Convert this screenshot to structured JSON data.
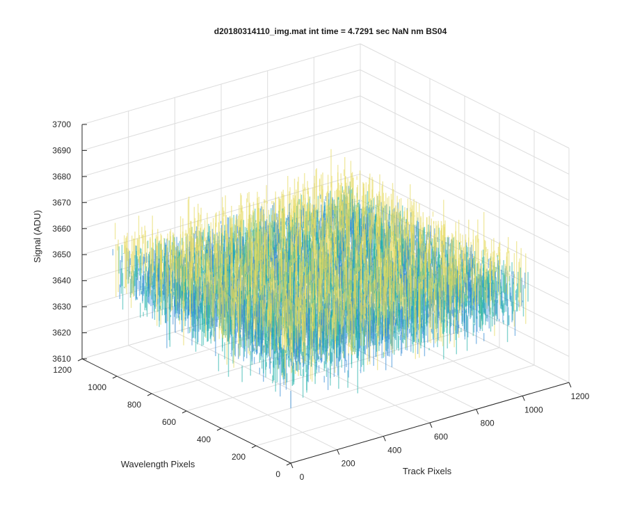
{
  "chart_data": {
    "type": "surface",
    "title": "d20180314110_img.mat int time = 4.7291 sec  NaN nm BS04",
    "xlabel": "Track Pixels",
    "ylabel": "Wavelength Pixels",
    "zlabel": "Signal (ADU)",
    "xlim": [
      0,
      1200
    ],
    "ylim": [
      0,
      1200
    ],
    "zlim": [
      3610,
      3700
    ],
    "x_ticks": [
      "0",
      "200",
      "400",
      "600",
      "800",
      "1000",
      "1200"
    ],
    "y_ticks": [
      "0",
      "200",
      "400",
      "600",
      "800",
      "1000",
      "1200"
    ],
    "z_ticks": [
      "3610",
      "3620",
      "3630",
      "3640",
      "3650",
      "3660",
      "3670",
      "3680",
      "3690",
      "3700"
    ],
    "data_extent": {
      "x": [
        1,
        1024
      ],
      "y": [
        1,
        1024
      ]
    },
    "z_mean": 3650,
    "z_noise_std": 8,
    "z_range": [
      3610,
      3690
    ],
    "grid": true,
    "colormap": "parula",
    "colors": {
      "low": "#2b86d6",
      "mid": "#1fb0a8",
      "high": "#e6d95a"
    }
  }
}
